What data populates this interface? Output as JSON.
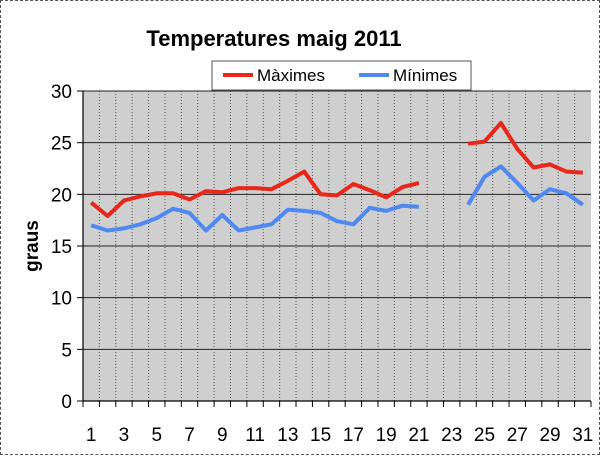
{
  "chart_data": {
    "type": "line",
    "title": "Temperatures maig 2011",
    "xlabel": "",
    "ylabel": "graus",
    "ylim": [
      0,
      30
    ],
    "yticks": [
      0,
      5,
      10,
      15,
      20,
      25,
      30
    ],
    "xlim": [
      1,
      31
    ],
    "xticks": [
      1,
      3,
      5,
      7,
      9,
      11,
      13,
      15,
      17,
      19,
      21,
      23,
      25,
      27,
      29,
      31
    ],
    "grid": true,
    "legend": "top-center",
    "x": [
      1,
      2,
      3,
      4,
      5,
      6,
      7,
      8,
      9,
      10,
      11,
      12,
      13,
      14,
      15,
      16,
      17,
      18,
      19,
      20,
      21,
      22,
      23,
      24,
      25,
      26,
      27,
      28,
      29,
      30,
      31
    ],
    "series": [
      {
        "name": "Màximes",
        "color": "#e8261a",
        "values": [
          19.2,
          17.9,
          19.4,
          19.8,
          20.1,
          20.1,
          19.5,
          20.3,
          20.2,
          20.6,
          20.6,
          20.5,
          21.3,
          22.2,
          20.0,
          19.9,
          21.0,
          20.4,
          19.7,
          20.7,
          21.1,
          null,
          null,
          24.9,
          25.1,
          26.9,
          24.4,
          22.6,
          22.9,
          22.2,
          22.1
        ]
      },
      {
        "name": "Mínimes",
        "color": "#4f88f0",
        "values": [
          17.0,
          16.5,
          16.7,
          17.1,
          17.7,
          18.6,
          18.2,
          16.5,
          18.0,
          16.5,
          16.8,
          17.1,
          18.5,
          18.4,
          18.2,
          17.4,
          17.1,
          18.7,
          18.4,
          18.9,
          18.8,
          null,
          null,
          19.0,
          21.7,
          22.7,
          21.1,
          19.4,
          20.5,
          20.1,
          19.0
        ]
      }
    ]
  }
}
